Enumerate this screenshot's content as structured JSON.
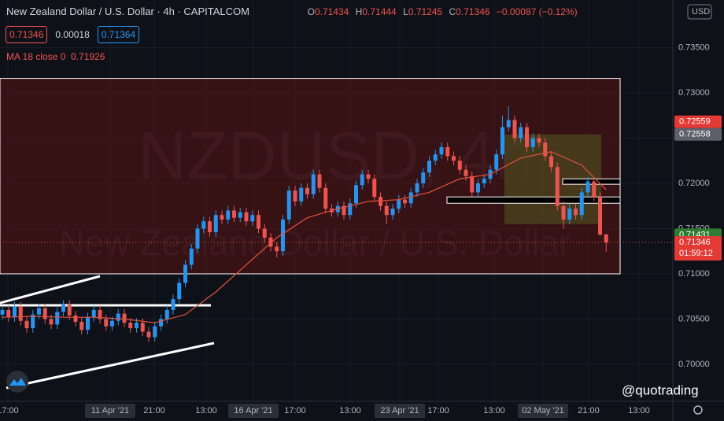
{
  "chart_data": {
    "type": "candlestick",
    "title": "New Zealand Dollar / U.S. Dollar · 4h · CAPITALCOM",
    "ohlc_labels": [
      "O",
      "H",
      "L",
      "C"
    ],
    "ohlc": [
      0.71434,
      0.71444,
      0.71245,
      0.71346
    ],
    "change": "−0.00087 (−0.12%)",
    "quote_boxes": [
      0.71346,
      0.00018,
      0.71364
    ],
    "ma_label": "MA 18 close 0",
    "ma_value": 0.71926,
    "watermark": "NZDUSD, 4h",
    "watermark_subtitle": "New Zealand Dollar / U.S. Dollar",
    "currency": "USD",
    "countdown": "01:59:12",
    "brand": "@quotrading",
    "up_color": "#2196f3",
    "down_color": "#ef5350",
    "grid": true,
    "ylim": [
      0.69591,
      0.74026
    ],
    "yticks": [
      {
        "value": 0.7,
        "label": "0.70000"
      },
      {
        "value": 0.705,
        "label": "0.70500"
      },
      {
        "value": 0.71,
        "label": "0.71000"
      },
      {
        "value": 0.715,
        "label": "0.71500"
      },
      {
        "value": 0.72,
        "label": "0.72000"
      },
      {
        "value": 0.725,
        "label": "0.72500"
      },
      {
        "value": 0.73,
        "label": "0.73000"
      },
      {
        "value": 0.735,
        "label": "0.73500"
      }
    ],
    "x_labels": [
      "17:00",
      "11 Apr '21",
      "21:00",
      "13:00",
      "16 Apr '21",
      "17:00",
      "13:00",
      "23 Apr '21",
      "17:00",
      "13:00",
      "02 May '21",
      "21:00",
      "13:00"
    ],
    "price_markers": [
      {
        "value": 0.72559,
        "color": "#e53935"
      },
      {
        "value": 0.72558,
        "color": "#5d606b"
      },
      {
        "value": 0.71431,
        "color": "#2e7d32"
      },
      {
        "value": 0.71346,
        "color": "#e53935"
      }
    ],
    "zones": [
      {
        "top": 0.7316,
        "bottom": 0.71,
        "color": "#5a1414"
      },
      {
        "top": 0.7254,
        "bottom": 0.7155,
        "color": "#4d4a1e"
      },
      {
        "top": 0.7185,
        "bottom": 0.7178,
        "color": "#000000"
      },
      {
        "top": 0.7205,
        "bottom": 0.7199,
        "color": "#000000"
      }
    ],
    "ma": {
      "name": "MA 18 close 0",
      "color": "#e0533e",
      "x": [
        0,
        5,
        10,
        15,
        20,
        25,
        30,
        35,
        40,
        45,
        50,
        55,
        60,
        65,
        70,
        75,
        80,
        85,
        90,
        95,
        99
      ],
      "values": [
        0.7052,
        0.7053,
        0.7052,
        0.7052,
        0.705,
        0.7046,
        0.7055,
        0.708,
        0.711,
        0.714,
        0.7162,
        0.7172,
        0.718,
        0.7182,
        0.719,
        0.7205,
        0.721,
        0.7228,
        0.7235,
        0.722,
        0.7193
      ]
    },
    "candles": [
      [
        0.7055,
        0.7065,
        0.705,
        0.706
      ],
      [
        0.706,
        0.7065,
        0.7047,
        0.7052
      ],
      [
        0.7052,
        0.7069,
        0.7047,
        0.7064
      ],
      [
        0.7064,
        0.7069,
        0.7043,
        0.7048
      ],
      [
        0.7048,
        0.7053,
        0.7035,
        0.704
      ],
      [
        0.704,
        0.706,
        0.7035,
        0.7055
      ],
      [
        0.7055,
        0.7067,
        0.705,
        0.7062
      ],
      [
        0.7062,
        0.7067,
        0.7045,
        0.705
      ],
      [
        0.705,
        0.7055,
        0.7039,
        0.7044
      ],
      [
        0.7044,
        0.7063,
        0.7039,
        0.7058
      ],
      [
        0.7058,
        0.7071,
        0.7053,
        0.7066
      ],
      [
        0.7066,
        0.7071,
        0.7049,
        0.7054
      ],
      [
        0.7054,
        0.7059,
        0.7042,
        0.7047
      ],
      [
        0.7047,
        0.7052,
        0.7033,
        0.7038
      ],
      [
        0.7038,
        0.7057,
        0.7033,
        0.7052
      ],
      [
        0.7052,
        0.7065,
        0.7047,
        0.706
      ],
      [
        0.706,
        0.7065,
        0.7045,
        0.705
      ],
      [
        0.705,
        0.7055,
        0.7037,
        0.7042
      ],
      [
        0.7042,
        0.7053,
        0.7037,
        0.7048
      ],
      [
        0.7048,
        0.7061,
        0.7043,
        0.7056
      ],
      [
        0.7056,
        0.7061,
        0.7041,
        0.7046
      ],
      [
        0.7046,
        0.7051,
        0.7035,
        0.704
      ],
      [
        0.704,
        0.7051,
        0.7035,
        0.7046
      ],
      [
        0.7046,
        0.7051,
        0.7031,
        0.7036
      ],
      [
        0.7036,
        0.7041,
        0.7025,
        0.703
      ],
      [
        0.703,
        0.7047,
        0.7025,
        0.7042
      ],
      [
        0.7042,
        0.7055,
        0.7037,
        0.705
      ],
      [
        0.705,
        0.7065,
        0.7045,
        0.706
      ],
      [
        0.706,
        0.7077,
        0.7055,
        0.7072
      ],
      [
        0.7072,
        0.7095,
        0.7067,
        0.709
      ],
      [
        0.709,
        0.7115,
        0.7085,
        0.711
      ],
      [
        0.711,
        0.7133,
        0.7105,
        0.7128
      ],
      [
        0.7128,
        0.7155,
        0.7123,
        0.715
      ],
      [
        0.715,
        0.7163,
        0.7145,
        0.7158
      ],
      [
        0.7158,
        0.7163,
        0.7141,
        0.7146
      ],
      [
        0.7146,
        0.717,
        0.7141,
        0.7165
      ],
      [
        0.7165,
        0.717,
        0.7155,
        0.716
      ],
      [
        0.716,
        0.7175,
        0.7155,
        0.717
      ],
      [
        0.717,
        0.7175,
        0.7157,
        0.7162
      ],
      [
        0.7162,
        0.7173,
        0.7157,
        0.7168
      ],
      [
        0.7168,
        0.7173,
        0.7153,
        0.7158
      ],
      [
        0.7158,
        0.717,
        0.7153,
        0.7165
      ],
      [
        0.7165,
        0.717,
        0.7145,
        0.715
      ],
      [
        0.715,
        0.7155,
        0.7135,
        0.714
      ],
      [
        0.714,
        0.7145,
        0.7125,
        0.713
      ],
      [
        0.713,
        0.7135,
        0.7118,
        0.7125
      ],
      [
        0.7125,
        0.7165,
        0.712,
        0.716
      ],
      [
        0.716,
        0.7197,
        0.7155,
        0.7192
      ],
      [
        0.7192,
        0.7197,
        0.7175,
        0.718
      ],
      [
        0.718,
        0.72,
        0.7175,
        0.7195
      ],
      [
        0.7195,
        0.72,
        0.7183,
        0.7188
      ],
      [
        0.7188,
        0.7215,
        0.7183,
        0.721
      ],
      [
        0.721,
        0.7215,
        0.719,
        0.7195
      ],
      [
        0.7195,
        0.72,
        0.7167,
        0.7172
      ],
      [
        0.7172,
        0.7177,
        0.7163,
        0.7168
      ],
      [
        0.7168,
        0.718,
        0.7163,
        0.7175
      ],
      [
        0.7175,
        0.718,
        0.716,
        0.7165
      ],
      [
        0.7165,
        0.7183,
        0.716,
        0.7178
      ],
      [
        0.7178,
        0.7203,
        0.7173,
        0.7198
      ],
      [
        0.7198,
        0.7215,
        0.7193,
        0.721
      ],
      [
        0.721,
        0.7215,
        0.72,
        0.7205
      ],
      [
        0.7205,
        0.721,
        0.718,
        0.7185
      ],
      [
        0.7185,
        0.719,
        0.717,
        0.7175
      ],
      [
        0.7175,
        0.718,
        0.7155,
        0.7165
      ],
      [
        0.7165,
        0.7177,
        0.716,
        0.7172
      ],
      [
        0.7172,
        0.7187,
        0.7167,
        0.7182
      ],
      [
        0.7182,
        0.7187,
        0.7173,
        0.7178
      ],
      [
        0.7178,
        0.7195,
        0.7173,
        0.719
      ],
      [
        0.719,
        0.7205,
        0.7185,
        0.72
      ],
      [
        0.72,
        0.7217,
        0.7195,
        0.7212
      ],
      [
        0.7212,
        0.723,
        0.7207,
        0.7225
      ],
      [
        0.7225,
        0.7237,
        0.722,
        0.7232
      ],
      [
        0.7232,
        0.7245,
        0.7227,
        0.724
      ],
      [
        0.724,
        0.7245,
        0.7225,
        0.723
      ],
      [
        0.723,
        0.7235,
        0.722,
        0.7225
      ],
      [
        0.7225,
        0.723,
        0.721,
        0.7215
      ],
      [
        0.7215,
        0.722,
        0.7203,
        0.7208
      ],
      [
        0.7208,
        0.7213,
        0.7185,
        0.719
      ],
      [
        0.719,
        0.7205,
        0.7185,
        0.72
      ],
      [
        0.72,
        0.721,
        0.7195,
        0.7205
      ],
      [
        0.7205,
        0.722,
        0.72,
        0.7215
      ],
      [
        0.7215,
        0.7237,
        0.721,
        0.7232
      ],
      [
        0.7232,
        0.7275,
        0.7227,
        0.7262
      ],
      [
        0.7262,
        0.7285,
        0.7257,
        0.727
      ],
      [
        0.727,
        0.7275,
        0.7245,
        0.725
      ],
      [
        0.725,
        0.7267,
        0.7245,
        0.7262
      ],
      [
        0.7262,
        0.7267,
        0.7235,
        0.724
      ],
      [
        0.724,
        0.7255,
        0.7235,
        0.725
      ],
      [
        0.725,
        0.7255,
        0.724,
        0.7245
      ],
      [
        0.7245,
        0.725,
        0.7225,
        0.723
      ],
      [
        0.723,
        0.7235,
        0.7213,
        0.7218
      ],
      [
        0.7218,
        0.7223,
        0.717,
        0.7175
      ],
      [
        0.7175,
        0.718,
        0.715,
        0.716
      ],
      [
        0.716,
        0.7177,
        0.7155,
        0.7172
      ],
      [
        0.7172,
        0.7177,
        0.716,
        0.7165
      ],
      [
        0.7165,
        0.7195,
        0.716,
        0.719
      ],
      [
        0.719,
        0.7207,
        0.7185,
        0.7202
      ],
      [
        0.7202,
        0.7207,
        0.718,
        0.7185
      ],
      [
        0.7185,
        0.719,
        0.7142,
        0.71434
      ],
      [
        0.71434,
        0.71444,
        0.71245,
        0.71346
      ]
    ]
  }
}
